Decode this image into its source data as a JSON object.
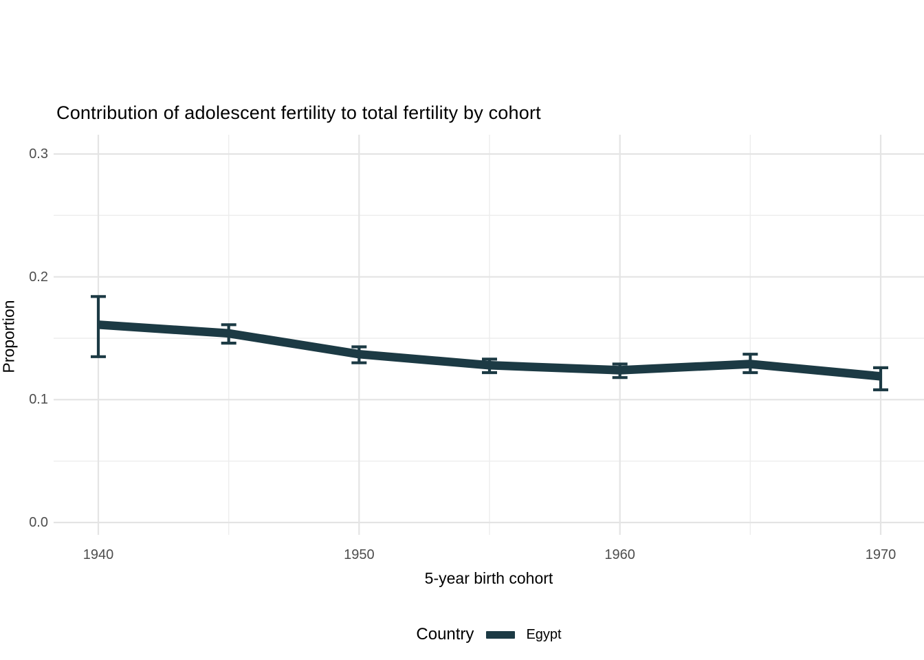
{
  "chart_data": {
    "type": "line",
    "title": "Contribution of adolescent fertility to total fertility by cohort",
    "xlabel": "5-year birth cohort",
    "ylabel": "Proportion",
    "x": [
      1940,
      1945,
      1950,
      1955,
      1960,
      1965,
      1970
    ],
    "series": [
      {
        "name": "Egypt",
        "color": "#1c3a44",
        "values": [
          0.161,
          0.154,
          0.137,
          0.128,
          0.124,
          0.129,
          0.119
        ],
        "ci_lower": [
          0.135,
          0.146,
          0.13,
          0.122,
          0.118,
          0.122,
          0.108
        ],
        "ci_upper": [
          0.184,
          0.161,
          0.143,
          0.133,
          0.129,
          0.137,
          0.126
        ]
      }
    ],
    "error_bars": true,
    "grid": true,
    "xlim": [
      1938.3,
      1971.7
    ],
    "ylim": [
      0,
      0.3
    ],
    "x_major_ticks": {
      "values": [
        1940,
        1950,
        1960,
        1970
      ],
      "labels": [
        "1940",
        "1950",
        "1960",
        "1970"
      ]
    },
    "x_minor_ticks": [
      1945,
      1955,
      1965
    ],
    "y_major_ticks": {
      "values": [
        0,
        0.1,
        0.2,
        0.3
      ],
      "labels": [
        "0.0",
        "0.1",
        "0.2",
        "0.3"
      ]
    },
    "y_minor_ticks": [
      0.05,
      0.15,
      0.25
    ],
    "legend": {
      "position": "bottom",
      "title": "Country",
      "entries": [
        {
          "label": "Egypt",
          "color": "#1c3a44"
        }
      ]
    }
  },
  "colors": {
    "background": "#ffffff",
    "line": "#1c3a44",
    "grid_major": "#e4e4e4",
    "grid_minor": "#ededed",
    "tick_text": "#4d4d4d",
    "title_text": "#000000"
  }
}
